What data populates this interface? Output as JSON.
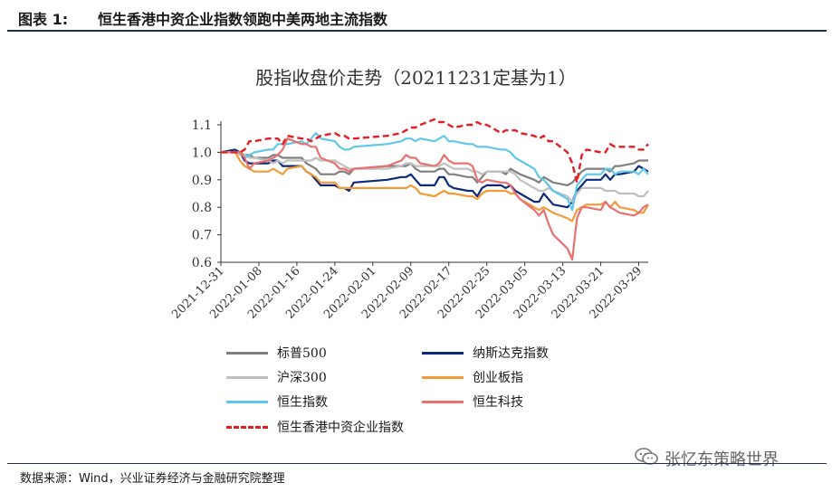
{
  "figure": {
    "label": "图表 1:",
    "title": "恒生香港中资企业指数领跑中美两地主流指数",
    "source": "数据来源：Wind，兴业证券经济与金融研究院整理",
    "watermark": "张忆东策略世界"
  },
  "chart_data": {
    "type": "line",
    "title": "股指收盘价走势（20211231定基为1）",
    "xlabel": "",
    "ylabel": "",
    "ylim": [
      0.6,
      1.1
    ],
    "yticks": [
      "0.6",
      "0.7",
      "0.8",
      "0.9",
      "1.0",
      "1.1"
    ],
    "xticks": [
      "2021-12-31",
      "2022-01-08",
      "2022-01-16",
      "2022-01-24",
      "2022-02-01",
      "2022-02-09",
      "2022-02-17",
      "2022-02-25",
      "2022-03-05",
      "2022-03-13",
      "2022-03-21",
      "2022-03-29"
    ],
    "grid": false,
    "legend_position": "bottom",
    "x": [
      "2021-12-31",
      "2022-01-03",
      "2022-01-04",
      "2022-01-05",
      "2022-01-06",
      "2022-01-07",
      "2022-01-10",
      "2022-01-11",
      "2022-01-12",
      "2022-01-13",
      "2022-01-14",
      "2022-01-17",
      "2022-01-18",
      "2022-01-19",
      "2022-01-20",
      "2022-01-21",
      "2022-01-24",
      "2022-01-25",
      "2022-01-26",
      "2022-01-27",
      "2022-01-28",
      "2022-02-04",
      "2022-02-07",
      "2022-02-08",
      "2022-02-09",
      "2022-02-10",
      "2022-02-11",
      "2022-02-14",
      "2022-02-15",
      "2022-02-16",
      "2022-02-17",
      "2022-02-18",
      "2022-02-21",
      "2022-02-22",
      "2022-02-23",
      "2022-02-24",
      "2022-02-25",
      "2022-02-28",
      "2022-03-01",
      "2022-03-02",
      "2022-03-03",
      "2022-03-04",
      "2022-03-07",
      "2022-03-08",
      "2022-03-09",
      "2022-03-10",
      "2022-03-11",
      "2022-03-14",
      "2022-03-15",
      "2022-03-16",
      "2022-03-17",
      "2022-03-18",
      "2022-03-21",
      "2022-03-22",
      "2022-03-23",
      "2022-03-24",
      "2022-03-25",
      "2022-03-28",
      "2022-03-29",
      "2022-03-30",
      "2022-03-31"
    ],
    "series": [
      {
        "name": "标普500",
        "color": "#7f7f7f",
        "dash": false,
        "values": [
          1.0,
          1.0,
          1.0,
          0.99,
          0.99,
          0.98,
          0.98,
          0.99,
          0.99,
          0.98,
          0.98,
          0.98,
          0.96,
          0.95,
          0.94,
          0.92,
          0.92,
          0.93,
          0.93,
          0.92,
          0.94,
          0.95,
          0.95,
          0.95,
          0.96,
          0.94,
          0.93,
          0.93,
          0.94,
          0.94,
          0.92,
          0.92,
          0.91,
          0.91,
          0.89,
          0.91,
          0.93,
          0.93,
          0.92,
          0.94,
          0.93,
          0.92,
          0.9,
          0.89,
          0.91,
          0.9,
          0.89,
          0.88,
          0.89,
          0.91,
          0.93,
          0.94,
          0.94,
          0.94,
          0.93,
          0.95,
          0.95,
          0.96,
          0.97,
          0.97,
          0.97
        ]
      },
      {
        "name": "纳斯达克指数",
        "color": "#0d2a7a",
        "dash": false,
        "values": [
          1.0,
          1.01,
          1.0,
          0.97,
          0.96,
          0.96,
          0.96,
          0.97,
          0.97,
          0.95,
          0.95,
          0.95,
          0.93,
          0.92,
          0.9,
          0.88,
          0.88,
          0.87,
          0.87,
          0.86,
          0.89,
          0.9,
          0.91,
          0.91,
          0.92,
          0.9,
          0.88,
          0.88,
          0.91,
          0.91,
          0.88,
          0.87,
          0.86,
          0.86,
          0.84,
          0.87,
          0.88,
          0.88,
          0.87,
          0.88,
          0.86,
          0.85,
          0.82,
          0.82,
          0.85,
          0.83,
          0.81,
          0.8,
          0.82,
          0.86,
          0.88,
          0.9,
          0.9,
          0.92,
          0.9,
          0.92,
          0.92,
          0.93,
          0.95,
          0.94,
          0.93
        ]
      },
      {
        "name": "沪深300",
        "color": "#bfbfbf",
        "dash": false,
        "values": [
          1.0,
          1.0,
          0.99,
          0.99,
          0.98,
          0.98,
          0.97,
          0.96,
          0.97,
          0.96,
          0.97,
          0.97,
          0.97,
          0.97,
          0.98,
          0.97,
          0.97,
          0.96,
          0.95,
          0.94,
          0.94,
          0.94,
          0.95,
          0.96,
          0.96,
          0.95,
          0.95,
          0.95,
          0.95,
          0.96,
          0.95,
          0.94,
          0.94,
          0.93,
          0.93,
          0.92,
          0.93,
          0.93,
          0.93,
          0.93,
          0.92,
          0.9,
          0.87,
          0.86,
          0.86,
          0.87,
          0.86,
          0.84,
          0.82,
          0.85,
          0.87,
          0.87,
          0.87,
          0.86,
          0.86,
          0.86,
          0.85,
          0.85,
          0.84,
          0.84,
          0.86
        ]
      },
      {
        "name": "创业板指",
        "color": "#f39b38",
        "dash": false,
        "values": [
          1.0,
          1.0,
          0.97,
          0.95,
          0.94,
          0.93,
          0.93,
          0.94,
          0.93,
          0.92,
          0.94,
          0.95,
          0.93,
          0.92,
          0.91,
          0.89,
          0.89,
          0.87,
          0.87,
          0.87,
          0.87,
          0.87,
          0.87,
          0.87,
          0.88,
          0.87,
          0.85,
          0.84,
          0.85,
          0.86,
          0.85,
          0.85,
          0.84,
          0.84,
          0.83,
          0.85,
          0.86,
          0.86,
          0.86,
          0.85,
          0.85,
          0.83,
          0.8,
          0.79,
          0.8,
          0.79,
          0.78,
          0.76,
          0.75,
          0.79,
          0.8,
          0.81,
          0.81,
          0.82,
          0.8,
          0.82,
          0.8,
          0.79,
          0.78,
          0.78,
          0.81
        ]
      },
      {
        "name": "恒生指数",
        "color": "#5fc8ea",
        "dash": false,
        "values": [
          1.0,
          1.0,
          1.0,
          0.98,
          0.99,
          1.0,
          1.01,
          1.01,
          1.03,
          1.03,
          1.03,
          1.04,
          1.03,
          1.05,
          1.07,
          1.05,
          1.04,
          1.02,
          1.01,
          1.01,
          1.02,
          1.03,
          1.04,
          1.05,
          1.05,
          1.04,
          1.05,
          1.04,
          1.05,
          1.06,
          1.04,
          1.04,
          1.03,
          1.03,
          1.02,
          1.02,
          1.02,
          1.01,
          1.01,
          1.0,
          0.98,
          0.97,
          0.94,
          0.91,
          0.9,
          0.88,
          0.86,
          0.83,
          0.79,
          0.88,
          0.9,
          0.92,
          0.92,
          0.94,
          0.94,
          0.92,
          0.93,
          0.93,
          0.92,
          0.94,
          0.92
        ]
      },
      {
        "name": "恒生科技",
        "color": "#e8706f",
        "dash": false,
        "values": [
          1.0,
          1.0,
          1.0,
          0.98,
          0.94,
          0.96,
          0.97,
          0.98,
          0.99,
          1.01,
          1.05,
          1.03,
          1.03,
          1.02,
          1.02,
          0.98,
          0.96,
          0.94,
          0.94,
          0.93,
          0.94,
          0.95,
          0.97,
          0.99,
          0.98,
          0.98,
          0.96,
          0.95,
          0.96,
          0.99,
          0.97,
          0.96,
          0.96,
          0.95,
          0.9,
          0.89,
          0.9,
          0.89,
          0.89,
          0.88,
          0.85,
          0.83,
          0.79,
          0.77,
          0.79,
          0.74,
          0.7,
          0.65,
          0.61,
          0.76,
          0.8,
          0.8,
          0.79,
          0.82,
          0.8,
          0.79,
          0.78,
          0.77,
          0.78,
          0.8,
          0.81
        ]
      },
      {
        "name": "恒生香港中资企业指数",
        "color": "#e31e25",
        "dash": true,
        "values": [
          1.0,
          1.0,
          1.0,
          1.01,
          1.04,
          1.04,
          1.05,
          1.05,
          1.05,
          1.03,
          1.06,
          1.05,
          1.05,
          1.04,
          1.05,
          1.06,
          1.07,
          1.06,
          1.06,
          1.05,
          1.05,
          1.06,
          1.07,
          1.08,
          1.09,
          1.09,
          1.1,
          1.12,
          1.11,
          1.11,
          1.1,
          1.09,
          1.1,
          1.1,
          1.11,
          1.1,
          1.1,
          1.07,
          1.08,
          1.08,
          1.08,
          1.07,
          1.06,
          1.05,
          1.06,
          1.04,
          1.04,
          1.0,
          0.96,
          0.89,
          0.99,
          1.01,
          1.0,
          1.0,
          1.03,
          1.02,
          1.02,
          1.02,
          1.01,
          1.01,
          1.03
        ]
      }
    ]
  }
}
